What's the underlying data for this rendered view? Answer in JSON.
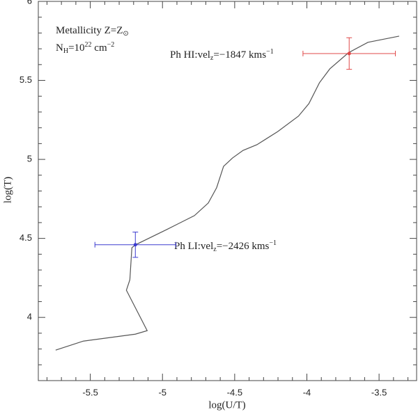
{
  "chart_data": {
    "type": "line",
    "xlabel": "log(U/T)",
    "ylabel": "log(T)",
    "x": [
      -5.74,
      -5.548,
      -5.188,
      -5.106,
      -5.25,
      -5.226,
      -5.212,
      -5.188,
      -4.971,
      -4.779,
      -4.683,
      -4.625,
      -4.577,
      -4.515,
      -4.442,
      -4.346,
      -4.202,
      -4.058,
      -3.986,
      -3.913,
      -3.841,
      -3.712,
      -3.577,
      -3.361
    ],
    "series": [
      {
        "color": "#555555",
        "values": [
          3.793,
          3.85,
          3.894,
          3.916,
          4.172,
          4.238,
          4.441,
          4.459,
          4.556,
          4.644,
          4.724,
          4.821,
          4.956,
          5.009,
          5.057,
          5.093,
          5.176,
          5.274,
          5.353,
          5.485,
          5.573,
          5.675,
          5.741,
          5.78
        ]
      }
    ],
    "points": [
      {
        "x": -5.188,
        "y": 4.46,
        "xerr": 0.28,
        "yerr": 0.08,
        "color": "#3c3cd0",
        "label": [
          "Ph LI:vel",
          "z",
          "=−2426 kms",
          "−1"
        ]
      },
      {
        "x": -3.707,
        "y": 5.67,
        "xerr": 0.32,
        "yerr": 0.1,
        "color": "#e04848",
        "label": [
          "Ph HI:vel",
          "z",
          "=−1847 kms",
          "−1"
        ]
      }
    ],
    "annotations": [
      [
        "Metallicity Z=Z",
        "⊙"
      ],
      [
        "N",
        "H",
        "=10",
        "22",
        " cm",
        "−2"
      ]
    ],
    "xlim": [
      -5.86,
      -3.24
    ],
    "ylim": [
      3.6,
      6.0
    ],
    "xticks": [
      -5.5,
      -5,
      -4.5,
      -4,
      -3.5
    ],
    "yticks": [
      4,
      4.5,
      5,
      5.5,
      6
    ],
    "xminorticks": [
      -5.8,
      -5.7,
      -5.6,
      -5.4,
      -5.3,
      -5.2,
      -5.1,
      -4.9,
      -4.8,
      -4.7,
      -4.6,
      -4.4,
      -4.3,
      -4.2,
      -4.1,
      -3.9,
      -3.8,
      -3.7,
      -3.6,
      -3.4,
      -3.3
    ],
    "yminorticks": [
      3.7,
      3.8,
      3.9,
      4.1,
      4.2,
      4.3,
      4.4,
      4.6,
      4.7,
      4.8,
      4.9,
      5.1,
      5.2,
      5.3,
      5.4,
      5.6,
      5.7,
      5.8,
      5.9
    ]
  }
}
